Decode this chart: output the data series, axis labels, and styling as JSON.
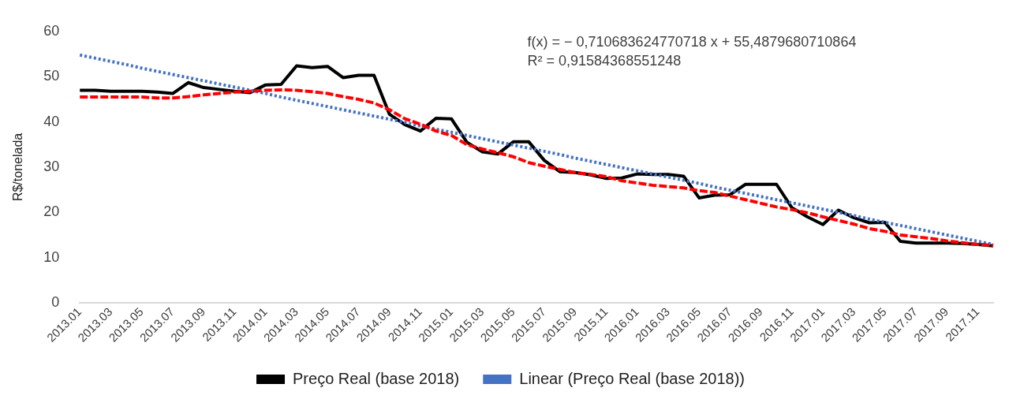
{
  "chart_data": {
    "type": "line",
    "ylabel": "R$/tonelada",
    "categories": [
      "2013.01",
      null,
      "2013.03",
      null,
      "2013.05",
      null,
      "2013.07",
      null,
      "2013.09",
      null,
      "2013.11",
      null,
      "2014.01",
      null,
      "2014.03",
      null,
      "2014.05",
      null,
      "2014.07",
      null,
      "2014.09",
      null,
      "2014.11",
      null,
      "2015.01",
      null,
      "2015.03",
      null,
      "2015.05",
      null,
      "2015.07",
      null,
      "2015.09",
      null,
      "2015.11",
      null,
      "2016.01",
      null,
      "2016.03",
      null,
      "2016.05",
      null,
      "2016.07",
      null,
      "2016.09",
      null,
      "2016.11",
      null,
      "2017.01",
      null,
      "2017.03",
      null,
      "2017.05",
      null,
      "2017.07",
      null,
      "2017.09",
      null,
      "2017.11",
      null
    ],
    "series": [
      {
        "name": "Preço Real (base 2018)",
        "color": "#000000",
        "line_style": "solid",
        "values": [
          47.0,
          47.0,
          46.8,
          46.8,
          46.8,
          46.6,
          46.3,
          48.7,
          47.6,
          47.2,
          46.8,
          46.5,
          48.2,
          48.3,
          52.4,
          52.0,
          52.3,
          49.8,
          50.3,
          50.3,
          41.7,
          39.4,
          38.0,
          40.8,
          40.7,
          35.5,
          33.4,
          32.9,
          35.6,
          35.6,
          31.5,
          29.0,
          28.8,
          28.3,
          27.5,
          27.6,
          28.5,
          28.4,
          28.4,
          28.0,
          23.2,
          23.8,
          23.9,
          26.2,
          26.2,
          26.2,
          21.0,
          19.0,
          17.3,
          20.5,
          18.8,
          17.7,
          17.8,
          13.6,
          13.2,
          13.2,
          13.2,
          13.1,
          12.9,
          12.6
        ]
      },
      {
        "color": "#ff0000",
        "line_style": "dashed",
        "values": [
          45.5,
          45.5,
          45.5,
          45.5,
          45.5,
          45.3,
          45.3,
          45.6,
          46.0,
          46.3,
          46.6,
          46.8,
          47.0,
          47.1,
          47.0,
          46.7,
          46.3,
          45.6,
          45.0,
          44.2,
          42.7,
          40.7,
          39.5,
          38.0,
          37.0,
          35.0,
          34.0,
          33.2,
          32.3,
          31.0,
          30.2,
          29.5,
          28.8,
          28.4,
          27.9,
          27.0,
          26.5,
          26.0,
          25.7,
          25.4,
          24.8,
          24.4,
          23.6,
          22.8,
          22.0,
          21.2,
          20.6,
          19.9,
          19.0,
          18.2,
          17.4,
          16.4,
          15.8,
          15.0,
          14.6,
          14.2,
          13.7,
          13.3,
          12.9,
          12.7
        ]
      },
      {
        "name": "Linear (Preço Real (base 2018))",
        "color": "#4472c4",
        "line_style": "dotted",
        "values": [
          54.8,
          54.1,
          53.4,
          52.7,
          51.9,
          51.2,
          50.5,
          49.8,
          49.1,
          48.4,
          47.7,
          47.0,
          46.3,
          45.5,
          44.8,
          44.1,
          43.4,
          42.7,
          42.0,
          41.3,
          40.6,
          39.9,
          39.1,
          38.4,
          37.7,
          37.0,
          36.3,
          35.6,
          34.9,
          34.2,
          33.5,
          32.8,
          32.0,
          31.3,
          30.6,
          29.9,
          29.2,
          28.5,
          27.8,
          27.1,
          26.4,
          25.6,
          24.9,
          24.2,
          23.5,
          22.8,
          22.1,
          21.4,
          20.7,
          20.0,
          19.3,
          18.5,
          17.8,
          17.1,
          16.4,
          15.7,
          15.0,
          14.3,
          13.6,
          12.9
        ]
      }
    ],
    "ylim": [
      0,
      60
    ],
    "yticks": [
      0,
      10,
      20,
      30,
      40,
      50,
      60
    ],
    "grid": false,
    "legend": "bottom",
    "marker": "none",
    "annotations": [
      "f(x) = − 0,710683624770718 x + 55,4879680710864",
      "R² = 0,91584368551248"
    ]
  }
}
